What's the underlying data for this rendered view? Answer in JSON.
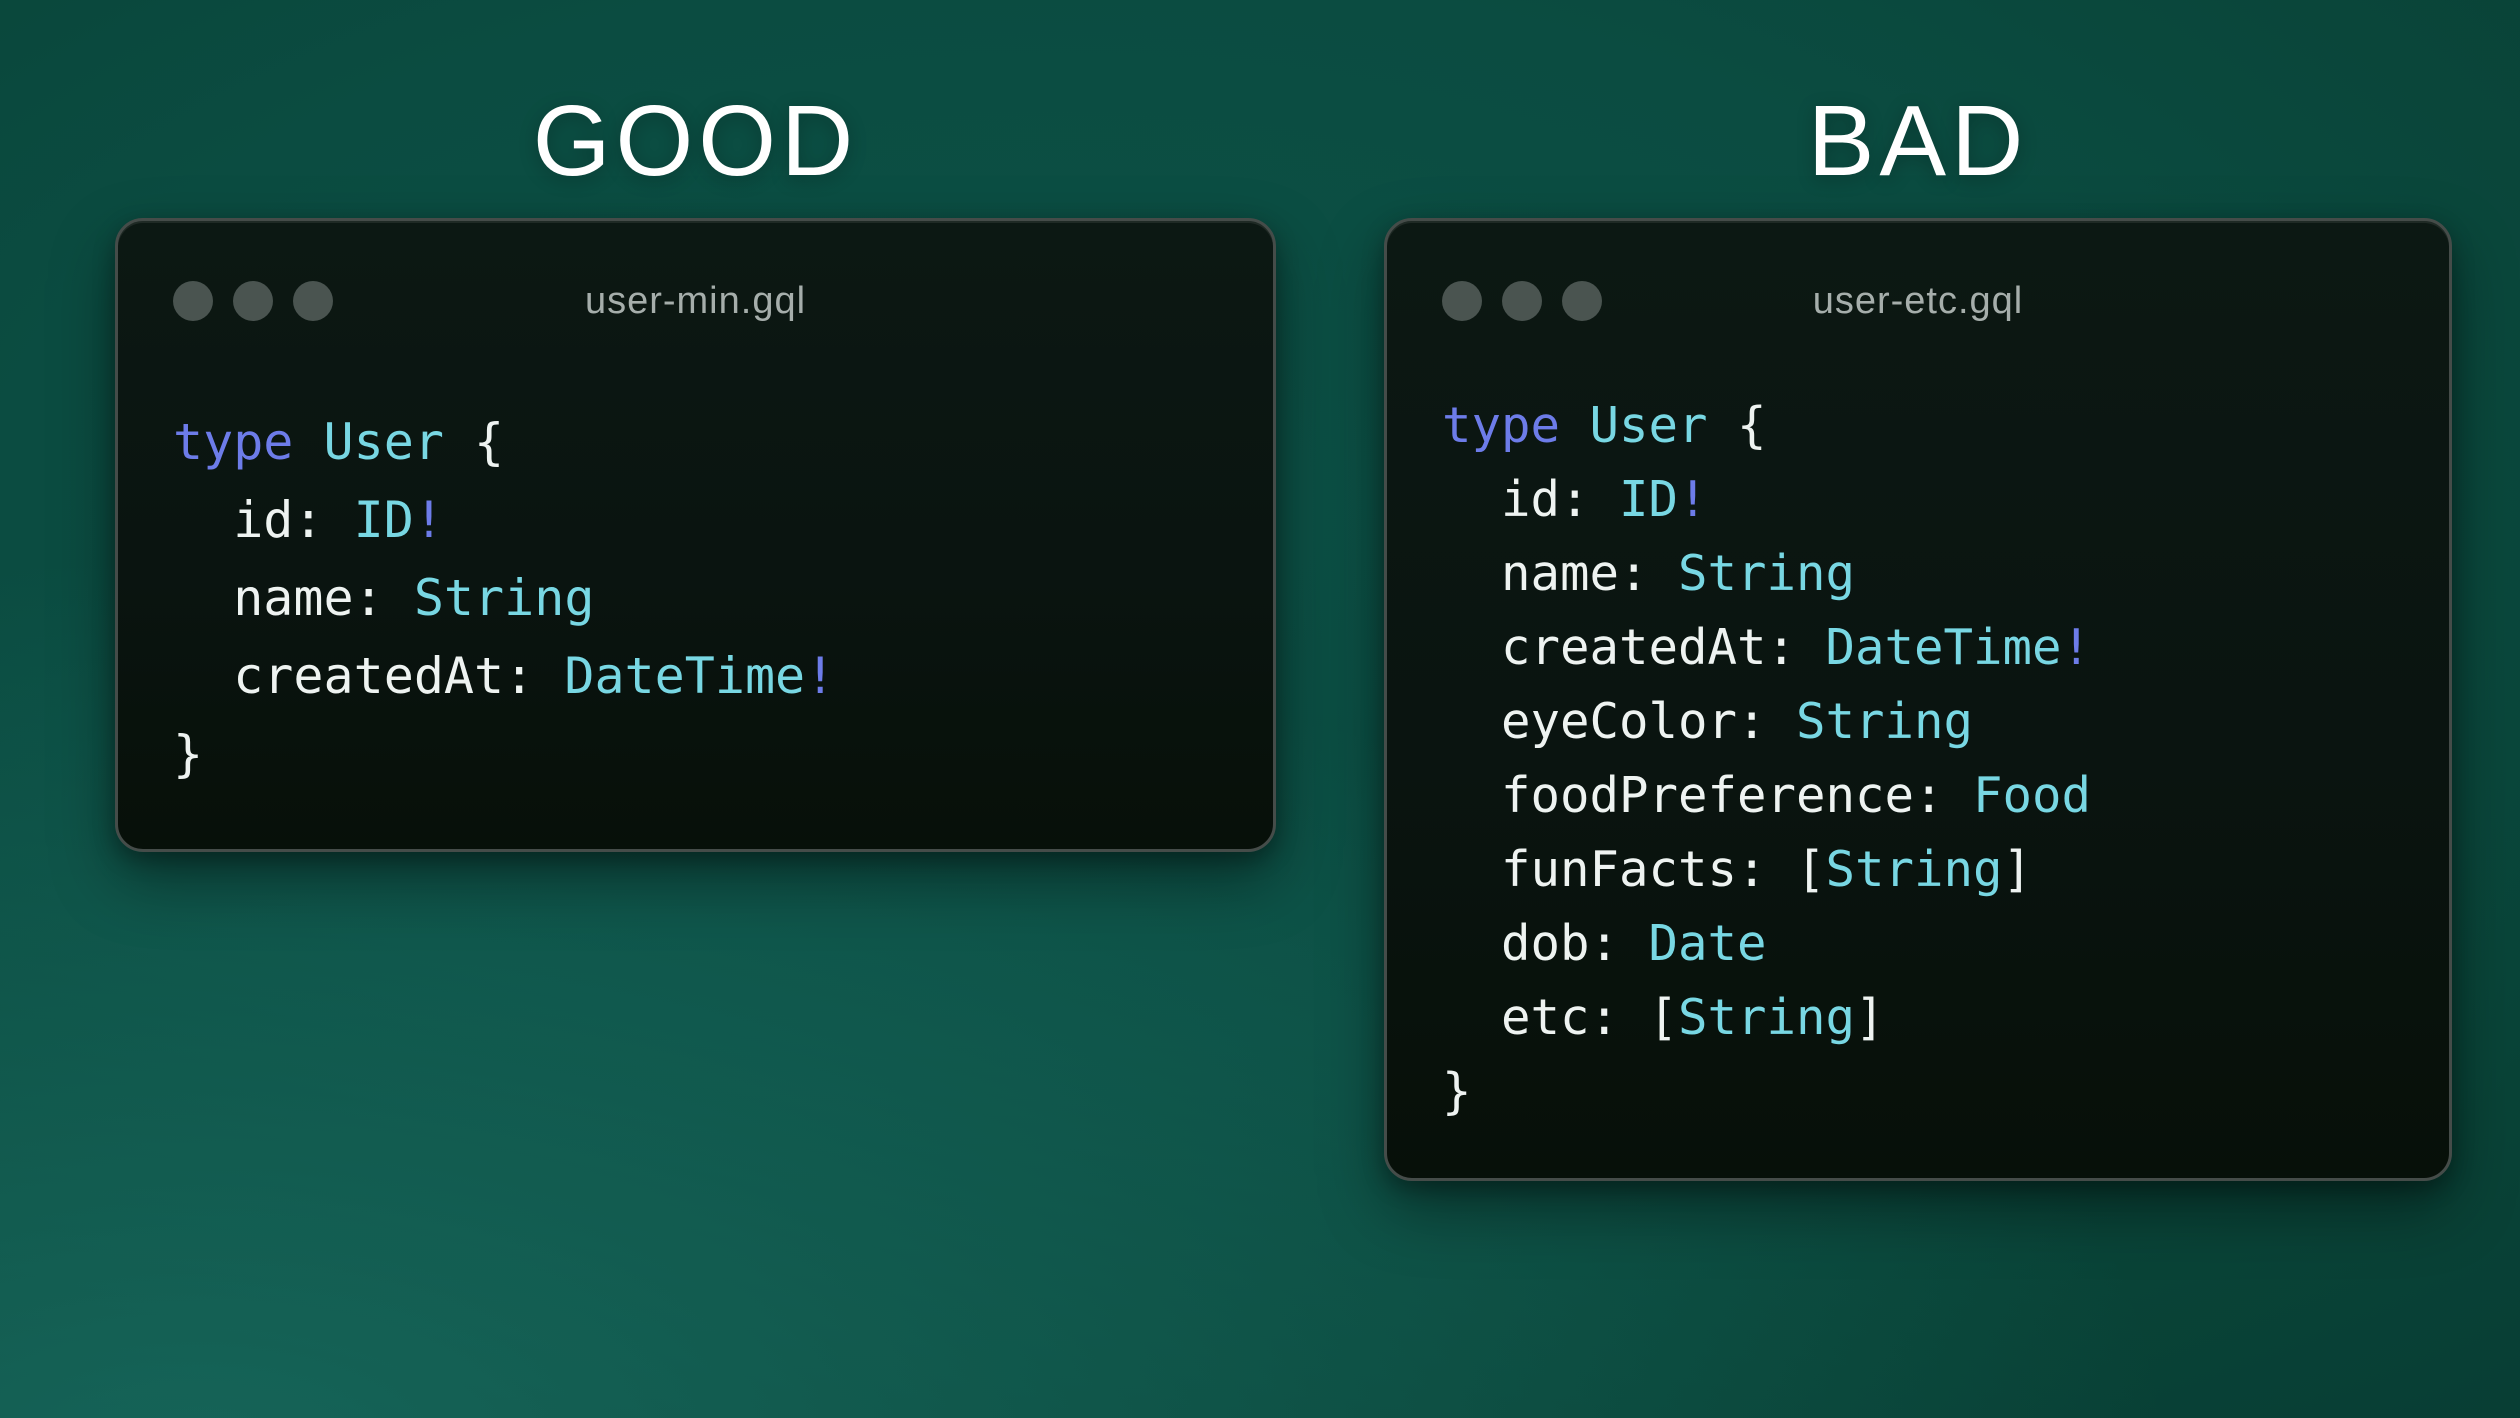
{
  "palette": {
    "heading_color": "#ffffff",
    "filename_color": "#a6aeab",
    "dot_color": "#4a5450",
    "window_bg_top": "#0c1813",
    "window_bg_bottom": "#071009",
    "window_border": "#454c49",
    "code_keyword_color": "#6d7ce9",
    "code_type_color": "#78d7e3",
    "code_plain_color": "#eef3f1",
    "background_teal_dark": "#073b33",
    "background_teal_mid": "#0c5146",
    "background_teal_light": "#17695f"
  },
  "good": {
    "heading": "GOOD",
    "filename": "user-min.gql",
    "code_lines": [
      {
        "tokens": [
          {
            "text": "type",
            "color": "keyword"
          },
          {
            "text": " ",
            "color": "plain"
          },
          {
            "text": "User",
            "color": "type"
          },
          {
            "text": " {",
            "color": "plain"
          }
        ]
      },
      {
        "tokens": [
          {
            "text": "  id: ",
            "color": "plain"
          },
          {
            "text": "ID",
            "color": "type"
          },
          {
            "text": "!",
            "color": "keyword"
          }
        ]
      },
      {
        "tokens": [
          {
            "text": "  name: ",
            "color": "plain"
          },
          {
            "text": "String",
            "color": "type"
          }
        ]
      },
      {
        "tokens": [
          {
            "text": "  createdAt: ",
            "color": "plain"
          },
          {
            "text": "DateTime",
            "color": "type"
          },
          {
            "text": "!",
            "color": "keyword"
          }
        ]
      },
      {
        "tokens": [
          {
            "text": "}",
            "color": "plain"
          }
        ]
      }
    ]
  },
  "bad": {
    "heading": "BAD",
    "filename": "user-etc.gql",
    "code_lines": [
      {
        "tokens": [
          {
            "text": "type",
            "color": "keyword"
          },
          {
            "text": " ",
            "color": "plain"
          },
          {
            "text": "User",
            "color": "type"
          },
          {
            "text": " {",
            "color": "plain"
          }
        ]
      },
      {
        "tokens": [
          {
            "text": "  id: ",
            "color": "plain"
          },
          {
            "text": "ID",
            "color": "type"
          },
          {
            "text": "!",
            "color": "keyword"
          }
        ]
      },
      {
        "tokens": [
          {
            "text": "  name: ",
            "color": "plain"
          },
          {
            "text": "String",
            "color": "type"
          }
        ]
      },
      {
        "tokens": [
          {
            "text": "  createdAt: ",
            "color": "plain"
          },
          {
            "text": "DateTime",
            "color": "type"
          },
          {
            "text": "!",
            "color": "keyword"
          }
        ]
      },
      {
        "tokens": [
          {
            "text": "  eyeColor: ",
            "color": "plain"
          },
          {
            "text": "String",
            "color": "type"
          }
        ]
      },
      {
        "tokens": [
          {
            "text": "  foodPreference: ",
            "color": "plain"
          },
          {
            "text": "Food",
            "color": "type"
          }
        ]
      },
      {
        "tokens": [
          {
            "text": "  funFacts: [",
            "color": "plain"
          },
          {
            "text": "String",
            "color": "type"
          },
          {
            "text": "]",
            "color": "plain"
          }
        ]
      },
      {
        "tokens": [
          {
            "text": "  dob: ",
            "color": "plain"
          },
          {
            "text": "Date",
            "color": "type"
          }
        ]
      },
      {
        "tokens": [
          {
            "text": "  etc: [",
            "color": "plain"
          },
          {
            "text": "String",
            "color": "type"
          },
          {
            "text": "]",
            "color": "plain"
          }
        ]
      },
      {
        "tokens": [
          {
            "text": "}",
            "color": "plain"
          }
        ]
      }
    ]
  }
}
